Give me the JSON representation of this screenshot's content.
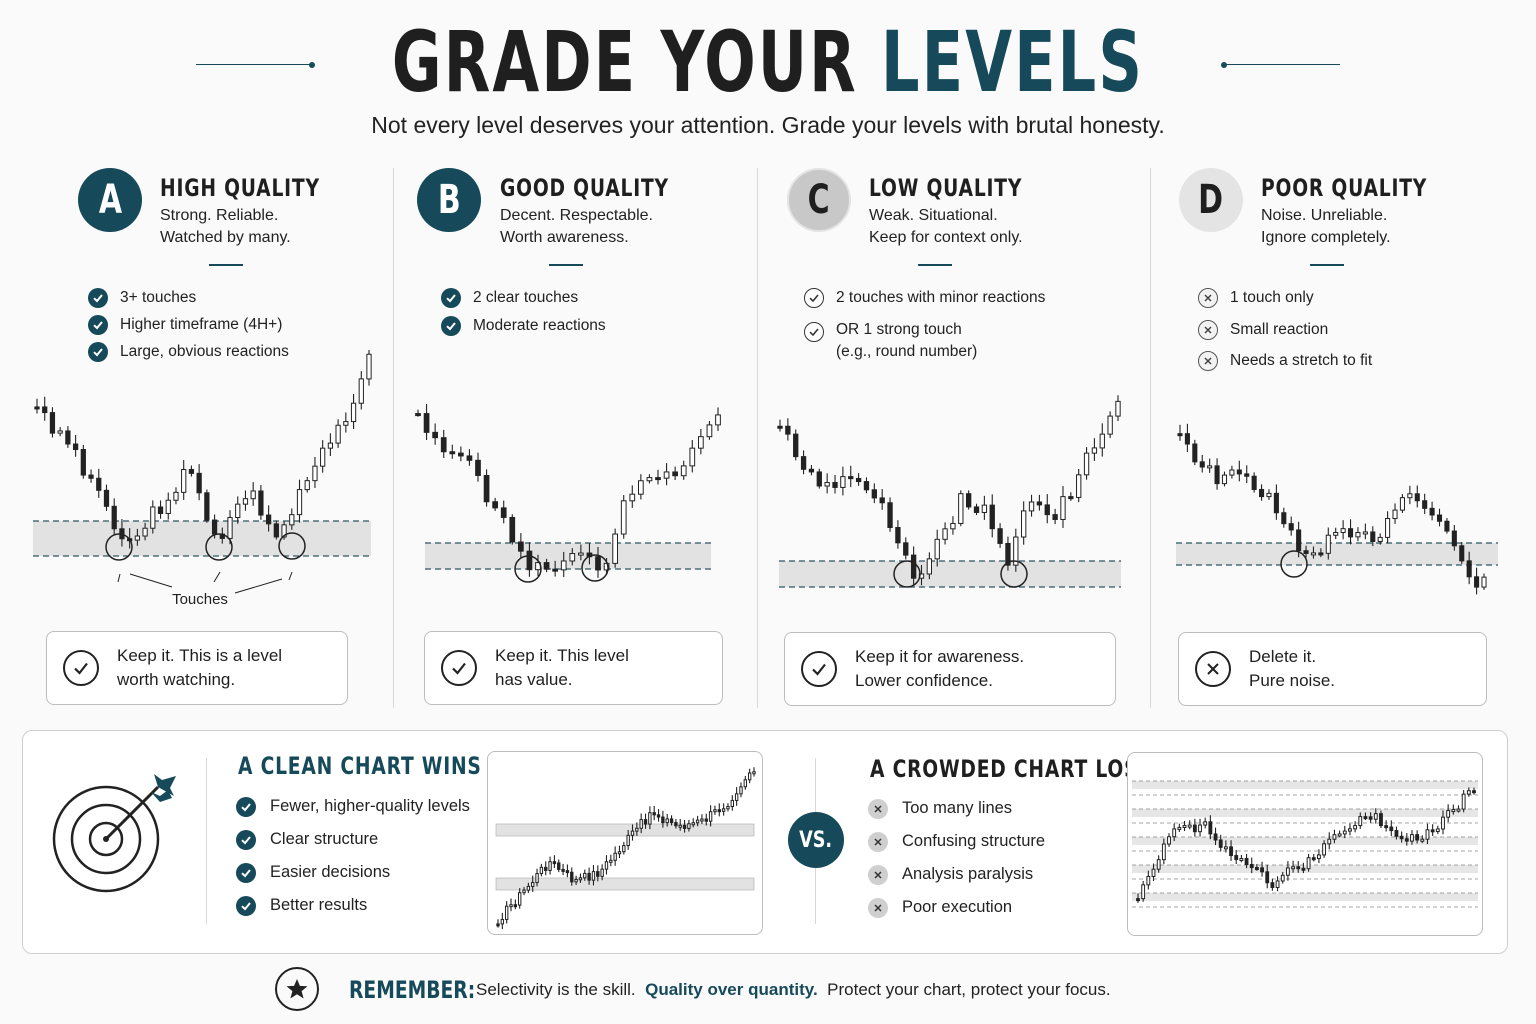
{
  "header": {
    "title_part1": "GRADE YOUR",
    "title_part2": "LEVELS",
    "subtitle": "Not every level deserves your attention.  Grade your levels with brutal honesty."
  },
  "grades": [
    {
      "letter": "A",
      "title": "HIGH QUALITY",
      "desc1": "Strong. Reliable.",
      "desc2": "Watched by many.",
      "criteria": [
        "3+ touches",
        "Higher timeframe (4H+)",
        "Large, obvious reactions"
      ],
      "criteria_icon": "check-filled",
      "annotation": "Touches",
      "verdict": "Keep it. This is a level\nworth watching.",
      "verdict_icon": "check-circle-icon"
    },
    {
      "letter": "B",
      "title": "GOOD QUALITY",
      "desc1": "Decent. Respectable.",
      "desc2": "Worth awareness.",
      "criteria": [
        "2 clear touches",
        "Moderate reactions"
      ],
      "criteria_icon": "check-filled",
      "verdict": "Keep it. This level\nhas value.",
      "verdict_icon": "check-circle-icon"
    },
    {
      "letter": "C",
      "title": "LOW QUALITY",
      "desc1": "Weak. Situational.",
      "desc2": "Keep for context only.",
      "criteria": [
        "2 touches with minor reactions",
        "OR 1 strong touch",
        "(e.g., round number)"
      ],
      "criteria_icon": "check-outline",
      "verdict": "Keep it for awareness.\nLower confidence.",
      "verdict_icon": "check-circle-icon"
    },
    {
      "letter": "D",
      "title": "POOR QUALITY",
      "desc1": "Noise. Unreliable.",
      "desc2": "Ignore completely.",
      "criteria": [
        "1 touch only",
        "Small reaction",
        "Needs a stretch to fit"
      ],
      "criteria_icon": "x-outline",
      "verdict": "Delete it.\nPure noise.",
      "verdict_icon": "x-circle-icon"
    }
  ],
  "comparison": {
    "clean_title": "A CLEAN CHART WINS",
    "clean_items": [
      "Fewer, higher-quality levels",
      "Clear structure",
      "Easier decisions",
      "Better results"
    ],
    "vs_label": "VS.",
    "crowded_title": "A CROWDED CHART LOSES",
    "crowded_items": [
      "Too many lines",
      "Confusing structure",
      "Analysis paralysis",
      "Poor execution"
    ]
  },
  "footer": {
    "label": "REMEMBER:",
    "text1": "Selectivity is the skill.",
    "emphasis": "Quality over quantity.",
    "text2": "Protect your chart, protect your focus."
  },
  "colors": {
    "accent": "#164a5a",
    "zone": "#e2e2e2",
    "text": "#1f1f1f"
  }
}
